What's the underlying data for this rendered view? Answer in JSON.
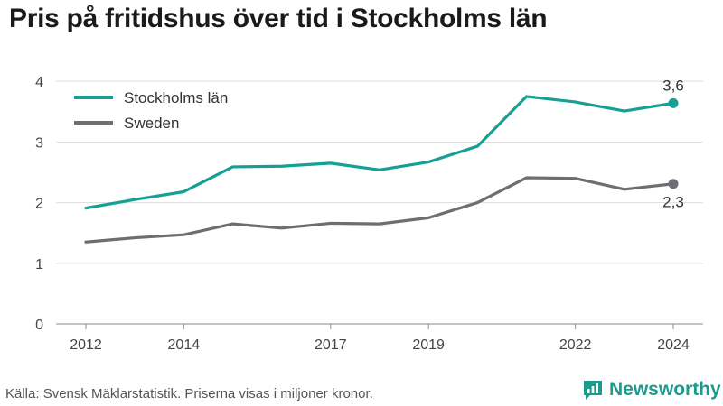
{
  "header": {
    "title": "Pris på fritidshus över tid i Stockholms län"
  },
  "footer": {
    "source": "Källa: Svensk Mäklarstatistik. Priserna visas i miljoner kronor."
  },
  "brand": {
    "name": "Newsworthy",
    "color": "#1c9a8c",
    "icon": "newsworthy-logo-icon"
  },
  "chart_data": {
    "type": "line",
    "title": "Pris på fritidshus över tid i Stockholms län",
    "xlabel": "",
    "ylabel": "",
    "x": [
      2012,
      2013,
      2014,
      2015,
      2016,
      2017,
      2018,
      2019,
      2020,
      2021,
      2022,
      2023,
      2024
    ],
    "xticks": [
      "2012",
      "2014",
      "2017",
      "2019",
      "2022",
      "2024"
    ],
    "yticks": [
      "0",
      "1",
      "2",
      "3",
      "4"
    ],
    "ylim": [
      0,
      4.3
    ],
    "grid": true,
    "legend": "top-left",
    "series": [
      {
        "name": "Stockholms län",
        "color": "#16a095",
        "values": [
          1.91,
          2.05,
          2.18,
          2.59,
          2.6,
          2.65,
          2.54,
          2.67,
          2.93,
          3.75,
          3.66,
          3.51,
          3.64
        ],
        "end_label": "3,6"
      },
      {
        "name": "Sweden",
        "color": "#6e6d74",
        "values": [
          1.35,
          1.42,
          1.47,
          1.65,
          1.58,
          1.66,
          1.65,
          1.75,
          2.0,
          2.41,
          2.4,
          2.22,
          2.31
        ],
        "end_label": "2,3"
      }
    ]
  }
}
